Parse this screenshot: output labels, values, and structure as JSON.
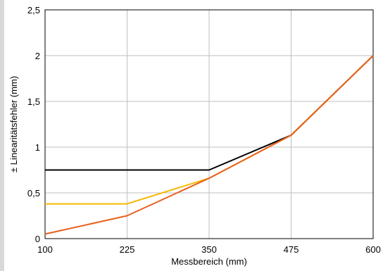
{
  "chart_data": {
    "type": "line",
    "xlabel": "Messbereich (mm)",
    "ylabel": "± Linearitätsfehler (mm)",
    "x": [
      100,
      225,
      350,
      475,
      600
    ],
    "x_tick_labels": [
      "100",
      "225",
      "350",
      "475",
      "600"
    ],
    "y_tick_labels": [
      "0",
      "0,5",
      "1",
      "1,5",
      "2",
      "2,5"
    ],
    "y_ticks": [
      0,
      0.5,
      1,
      1.5,
      2,
      2.5
    ],
    "xlim": [
      100,
      600
    ],
    "ylim": [
      0,
      2.5
    ],
    "grid": true,
    "series": [
      {
        "color": "#000000",
        "values": [
          0.75,
          0.75,
          0.75,
          1.13,
          2.0
        ]
      },
      {
        "color": "#f5b800",
        "values": [
          0.38,
          0.38,
          0.66,
          1.13,
          2.0
        ]
      },
      {
        "color": "#e8601c",
        "values": [
          0.05,
          0.25,
          0.66,
          1.13,
          2.0
        ]
      }
    ]
  }
}
